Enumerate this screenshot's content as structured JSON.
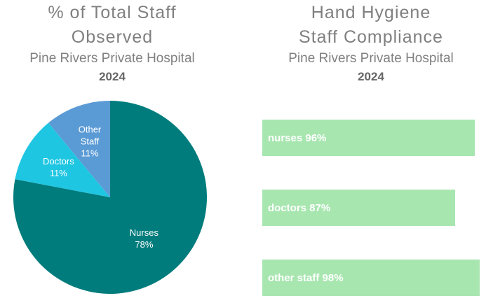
{
  "pie_panel": {
    "title_line1": "% of Total Staff",
    "title_line2": "Observed",
    "subtitle": "Pine Rivers Private Hospital",
    "year": "2024"
  },
  "bar_panel": {
    "title_line1": "Hand Hygiene",
    "title_line2": "Staff Compliance",
    "subtitle": "Pine Rivers Private Hospital",
    "year": "2024"
  },
  "chart_data": [
    {
      "type": "pie",
      "title": "% of Total Staff Observed",
      "subtitle": "Pine Rivers Private Hospital 2024",
      "slices": [
        {
          "label_lines": [
            "Nurses",
            "78%"
          ],
          "value": 78,
          "color": "#007c7c"
        },
        {
          "label_lines": [
            "Doctors",
            "11%"
          ],
          "value": 11,
          "color": "#1fc6e2"
        },
        {
          "label_lines": [
            "Other",
            "Staff",
            "11%"
          ],
          "value": 11,
          "color": "#5b9bd5"
        }
      ]
    },
    {
      "type": "bar",
      "orientation": "horizontal",
      "title": "Hand Hygiene Staff Compliance",
      "subtitle": "Pine Rivers Private Hospital 2024",
      "bar_color": "#a8e6b0",
      "bars": [
        {
          "label": "nurses 96%",
          "value": 96
        },
        {
          "label": "doctors 87%",
          "value": 87
        },
        {
          "label": "other staff 98%",
          "value": 98
        }
      ]
    }
  ]
}
